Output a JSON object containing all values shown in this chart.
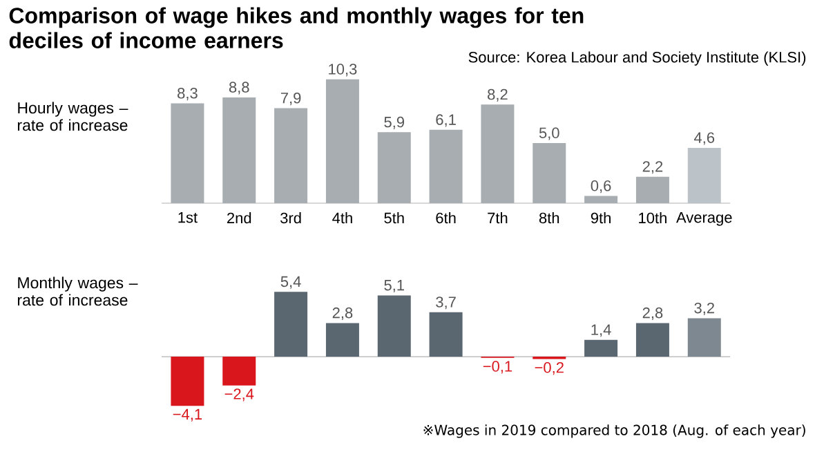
{
  "chart_data": [
    {
      "type": "bar",
      "title": "Comparison of wage hikes and monthly wages for ten deciles of income earners",
      "ylabel": "Hourly wages – rate of increase",
      "annotations": [
        "Source: Korea Labour and Society Institute (KLSI)"
      ],
      "categories": [
        "1st",
        "2nd",
        "3rd",
        "4th",
        "5th",
        "6th",
        "7th",
        "8th",
        "9th",
        "10th",
        "Average"
      ],
      "values": [
        8.3,
        8.8,
        7.9,
        10.3,
        5.9,
        6.1,
        8.2,
        5.0,
        0.6,
        2.2,
        4.6
      ],
      "value_labels": [
        "8,3",
        "8,8",
        "7,9",
        "10,3",
        "5,9",
        "6,1",
        "8,2",
        "5,0",
        "0,6",
        "2,2",
        "4,6"
      ],
      "colors": [
        "#a7adb1",
        "#a7adb1",
        "#a7adb1",
        "#a7adb1",
        "#a7adb1",
        "#a7adb1",
        "#a7adb1",
        "#a7adb1",
        "#a7adb1",
        "#a7adb1",
        "#bcc3c8"
      ],
      "tick_labels": "x"
    },
    {
      "type": "bar",
      "ylabel": "Monthly wages – rate of increase",
      "annotations": [
        "※Wages in 2019 compared to 2018 (Aug. of each year)"
      ],
      "categories": [
        null,
        null,
        null,
        null,
        null,
        null,
        null,
        null,
        null,
        null,
        null
      ],
      "values": [
        -4.1,
        -2.4,
        5.4,
        2.8,
        5.1,
        3.7,
        -0.1,
        -0.2,
        1.4,
        2.8,
        3.2
      ],
      "value_labels": [
        "−4,1",
        "−2,4",
        "5,4",
        "2,8",
        "5,1",
        "3,7",
        "−0,1",
        "−0,2",
        "1,4",
        "2,8",
        "3,2"
      ],
      "colors": [
        "#d9161c",
        "#d9161c",
        "#5b6770",
        "#5b6770",
        "#5b6770",
        "#5b6770",
        "#d9161c",
        "#d9161c",
        "#5b6770",
        "#5b6770",
        "#7d8890"
      ],
      "tick_labels": false
    }
  ]
}
